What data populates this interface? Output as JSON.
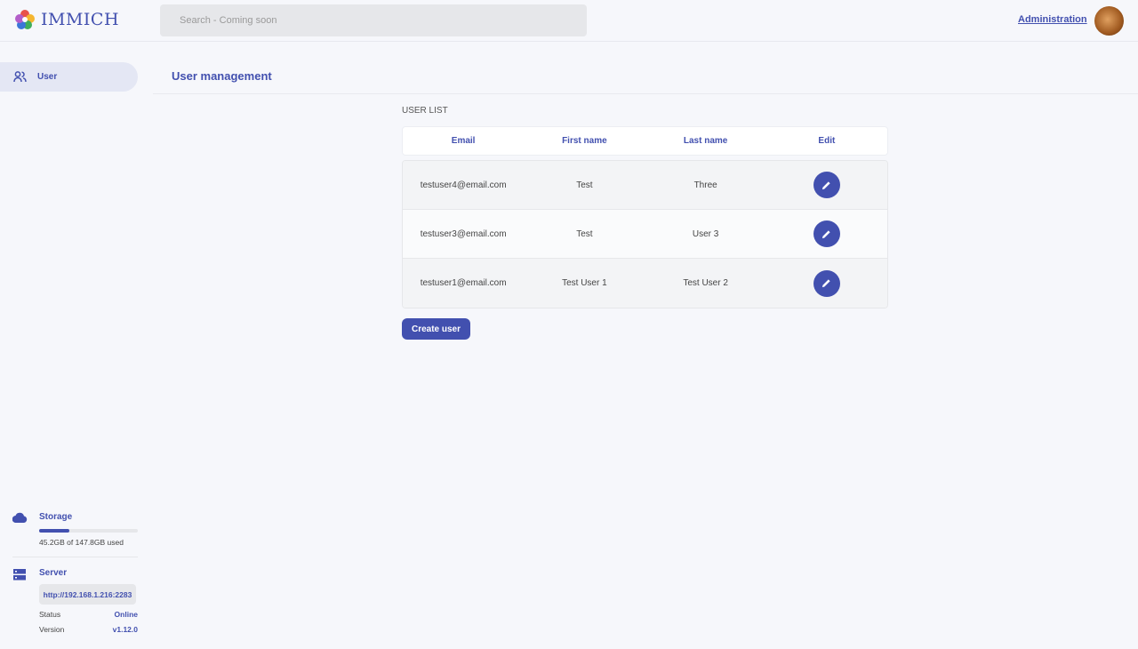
{
  "header": {
    "logo_text": "IMMICH",
    "search_placeholder": "Search - Coming soon",
    "admin_link": "Administration"
  },
  "sidebar": {
    "items": [
      {
        "label": "User",
        "icon": "users-icon"
      }
    ],
    "storage": {
      "label": "Storage",
      "used_text": "45.2GB of 147.8GB used",
      "used_fraction": 0.306
    },
    "server": {
      "label": "Server",
      "url": "http://192.168.1.216:2283",
      "status_label": "Status",
      "status_value": "Online",
      "version_label": "Version",
      "version_value": "v1.12.0"
    }
  },
  "main": {
    "title": "User management",
    "section_label": "USER LIST",
    "columns": [
      "Email",
      "First name",
      "Last name",
      "Edit"
    ],
    "rows": [
      {
        "email": "testuser4@email.com",
        "first": "Test",
        "last": "Three"
      },
      {
        "email": "testuser3@email.com",
        "first": "Test",
        "last": "User 3"
      },
      {
        "email": "testuser1@email.com",
        "first": "Test User 1",
        "last": "Test User 2"
      }
    ],
    "create_button": "Create user"
  },
  "colors": {
    "accent": "#4250af",
    "background": "#f6f7fb"
  }
}
